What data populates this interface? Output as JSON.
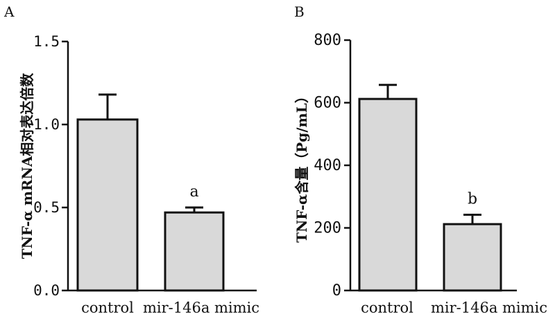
{
  "chart_data": [
    {
      "panel": "A",
      "type": "bar",
      "ylabel": "TNF-α mRNA相对表达倍数",
      "ylim": [
        0,
        1.5
      ],
      "yticks": [
        "0.0",
        "0.5",
        "1.0",
        "1.5"
      ],
      "categories": [
        "control",
        "mir-146a mimic"
      ],
      "values": [
        1.03,
        0.47
      ],
      "errors": [
        0.15,
        0.03
      ],
      "annotations": [
        "",
        "a"
      ]
    },
    {
      "panel": "B",
      "type": "bar",
      "ylabel": "TNF-α含量（Pg/mL）",
      "ylim": [
        0,
        800
      ],
      "yticks": [
        "0",
        "200",
        "400",
        "600",
        "800"
      ],
      "categories": [
        "control",
        "mir-146a mimic"
      ],
      "values": [
        612,
        212
      ],
      "errors": [
        45,
        30
      ],
      "annotations": [
        "",
        "b"
      ]
    }
  ]
}
